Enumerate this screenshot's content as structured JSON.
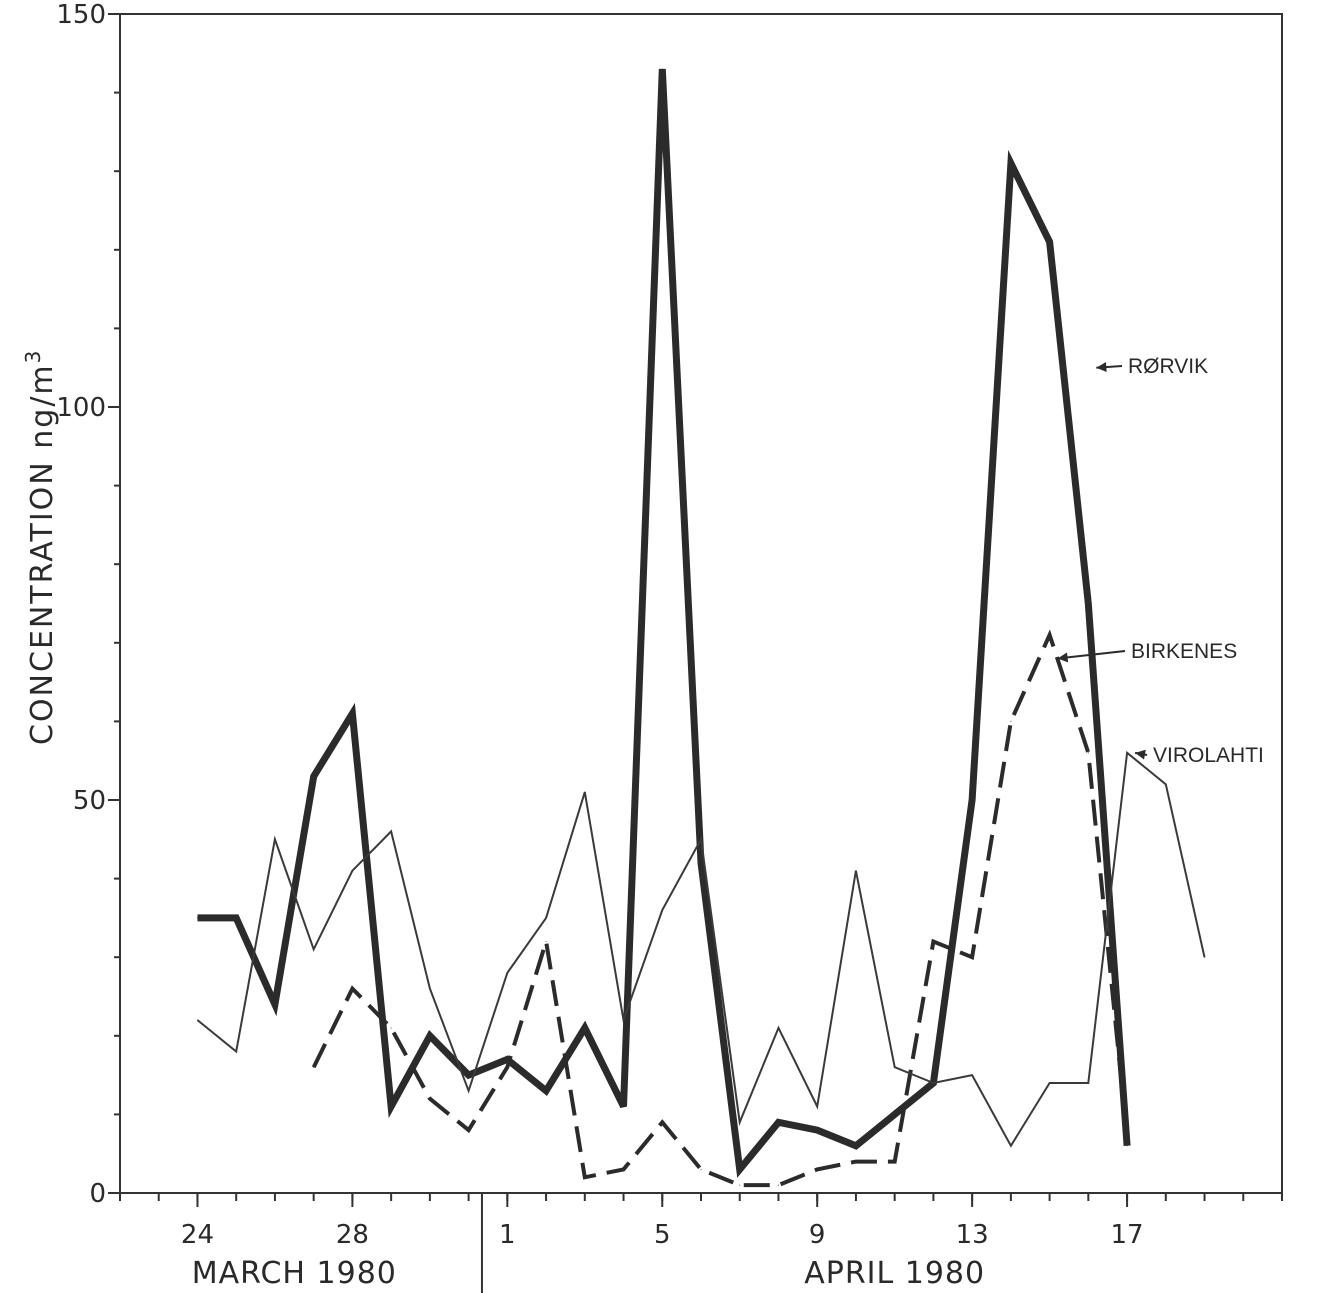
{
  "chart_data": {
    "type": "line",
    "ylabel": "CONCENTRATION  ng/m",
    "ylabel_sup": "3",
    "ylim": [
      0,
      150
    ],
    "yticks": [
      0,
      50,
      100,
      150
    ],
    "x_unit": "days (24 March 1980 to 19 April 1980)",
    "xlim": [
      "1980-03-22",
      "1980-04-21"
    ],
    "xticks": [
      {
        "date": "1980-03-24",
        "label": "24"
      },
      {
        "date": "1980-03-28",
        "label": "28"
      },
      {
        "date": "1980-04-01",
        "label": "1"
      },
      {
        "date": "1980-04-05",
        "label": "5"
      },
      {
        "date": "1980-04-09",
        "label": "9"
      },
      {
        "date": "1980-04-13",
        "label": "13"
      },
      {
        "date": "1980-04-17",
        "label": "17"
      }
    ],
    "month_labels": [
      {
        "label": "MARCH 1980",
        "from": "1980-03-22",
        "to": "1980-03-31"
      },
      {
        "label": "APRIL 1980",
        "from": "1980-04-01",
        "to": "1980-04-21"
      }
    ],
    "month_divider": "1980-03-31",
    "grid": false,
    "series": [
      {
        "name": "RØRVIK",
        "style": "thick",
        "color": "#2b2b2b",
        "points": [
          [
            "1980-03-24",
            35
          ],
          [
            "1980-03-25",
            35
          ],
          [
            "1980-03-26",
            24
          ],
          [
            "1980-03-27",
            53
          ],
          [
            "1980-03-28",
            61
          ],
          [
            "1980-03-29",
            11
          ],
          [
            "1980-03-30",
            20
          ],
          [
            "1980-03-31",
            15
          ],
          [
            "1980-04-01",
            17
          ],
          [
            "1980-04-02",
            13
          ],
          [
            "1980-04-03",
            21
          ],
          [
            "1980-04-04",
            11
          ],
          [
            "1980-04-05",
            143
          ],
          [
            "1980-04-06",
            42
          ],
          [
            "1980-04-07",
            3
          ],
          [
            "1980-04-08",
            9
          ],
          [
            "1980-04-09",
            8
          ],
          [
            "1980-04-10",
            6
          ],
          [
            "1980-04-11",
            10
          ],
          [
            "1980-04-12",
            14
          ],
          [
            "1980-04-13",
            50
          ],
          [
            "1980-04-14",
            131
          ],
          [
            "1980-04-15",
            121
          ],
          [
            "1980-04-16",
            75
          ],
          [
            "1980-04-17",
            6
          ]
        ]
      },
      {
        "name": "BIRKENES",
        "style": "dashed",
        "color": "#2b2b2b",
        "points": [
          [
            "1980-03-27",
            16
          ],
          [
            "1980-03-28",
            26
          ],
          [
            "1980-03-29",
            21
          ],
          [
            "1980-03-30",
            12
          ],
          [
            "1980-03-31",
            8
          ],
          [
            "1980-04-01",
            16
          ],
          [
            "1980-04-02",
            32
          ],
          [
            "1980-04-03",
            2
          ],
          [
            "1980-04-04",
            3
          ],
          [
            "1980-04-05",
            9
          ],
          [
            "1980-04-06",
            3
          ],
          [
            "1980-04-07",
            1
          ],
          [
            "1980-04-08",
            1
          ],
          [
            "1980-04-09",
            3
          ],
          [
            "1980-04-10",
            4
          ],
          [
            "1980-04-11",
            4
          ],
          [
            "1980-04-12",
            32
          ],
          [
            "1980-04-13",
            30
          ],
          [
            "1980-04-14",
            60
          ],
          [
            "1980-04-15",
            71
          ],
          [
            "1980-04-16",
            56
          ],
          [
            "1980-04-17",
            7
          ]
        ]
      },
      {
        "name": "VIROLAHTI",
        "style": "thin",
        "color": "#3a3a3a",
        "points": [
          [
            "1980-03-24",
            22
          ],
          [
            "1980-03-25",
            18
          ],
          [
            "1980-03-26",
            45
          ],
          [
            "1980-03-27",
            31
          ],
          [
            "1980-03-28",
            41
          ],
          [
            "1980-03-29",
            46
          ],
          [
            "1980-03-30",
            26
          ],
          [
            "1980-03-31",
            13
          ],
          [
            "1980-04-01",
            28
          ],
          [
            "1980-04-02",
            35
          ],
          [
            "1980-04-03",
            51
          ],
          [
            "1980-04-04",
            22
          ],
          [
            "1980-04-05",
            36
          ],
          [
            "1980-04-06",
            45
          ],
          [
            "1980-04-07",
            9
          ],
          [
            "1980-04-08",
            21
          ],
          [
            "1980-04-09",
            11
          ],
          [
            "1980-04-10",
            41
          ],
          [
            "1980-04-11",
            16
          ],
          [
            "1980-04-12",
            14
          ],
          [
            "1980-04-13",
            15
          ],
          [
            "1980-04-14",
            6
          ],
          [
            "1980-04-15",
            14
          ],
          [
            "1980-04-16",
            14
          ],
          [
            "1980-04-17",
            56
          ],
          [
            "1980-04-18",
            52
          ],
          [
            "1980-04-19",
            30
          ]
        ]
      }
    ],
    "annotations": [
      {
        "series": "RØRVIK",
        "text": "RØRVIK",
        "point": [
          "1980-04-16",
          105
        ]
      },
      {
        "series": "BIRKENES",
        "text": "BIRKENES",
        "point": [
          "1980-04-15",
          68
        ]
      },
      {
        "series": "VIROLAHTI",
        "text": "VIROLAHTI",
        "point": [
          "1980-04-17",
          56
        ]
      }
    ]
  }
}
